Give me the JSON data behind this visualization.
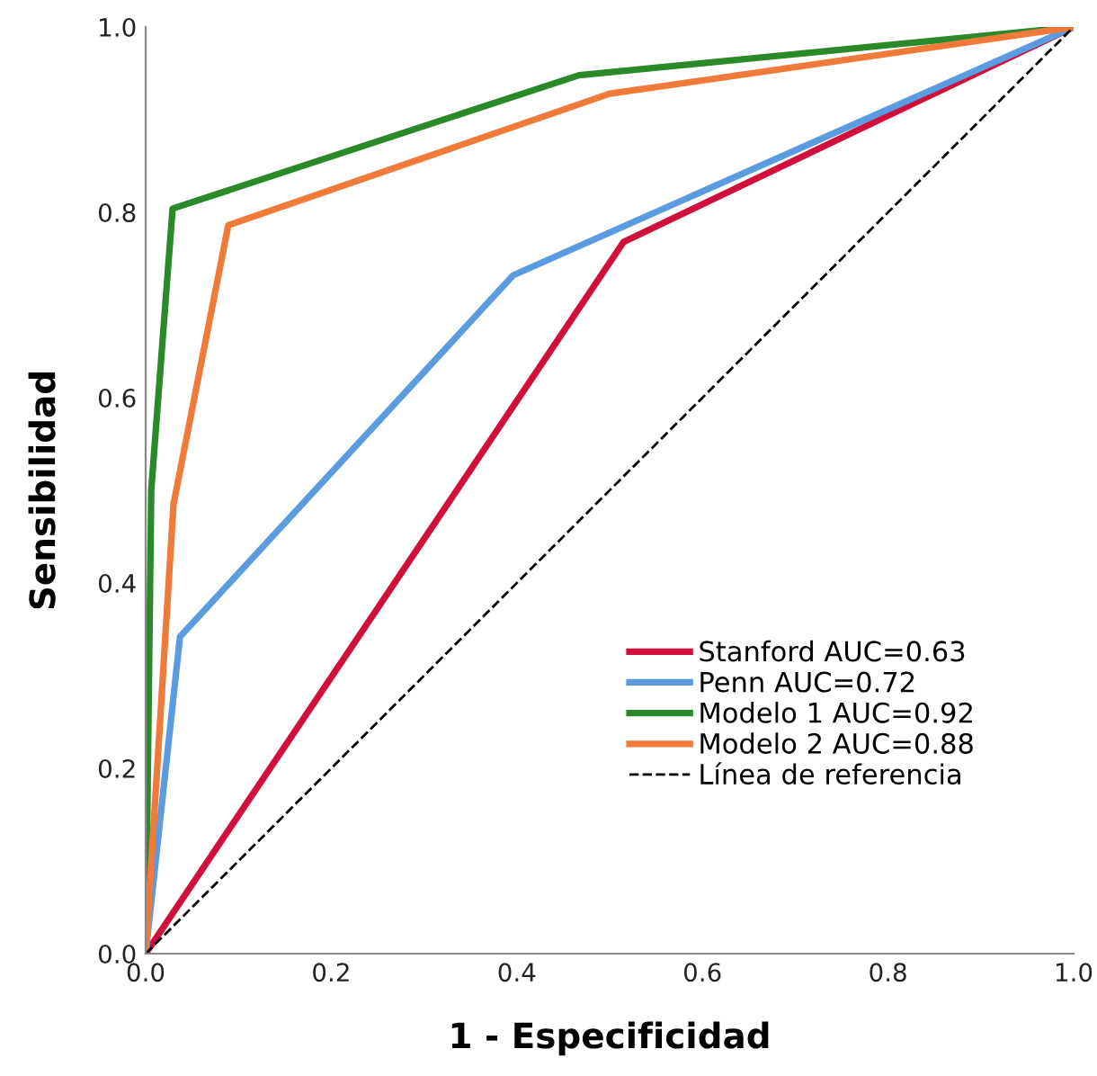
{
  "chart_data": {
    "type": "line",
    "xlabel": "1 - Especificidad",
    "ylabel": "Sensibilidad",
    "xlim": [
      0,
      1
    ],
    "ylim": [
      0,
      1
    ],
    "xticks": [
      {
        "value": 0,
        "label": "0.0"
      },
      0.2,
      0.4,
      0.6,
      0.8,
      {
        "value": 1,
        "label": "1.0"
      }
    ],
    "yticks": [
      {
        "value": 0,
        "label": "0.0"
      },
      0.2,
      0.4,
      0.6,
      0.8,
      {
        "value": 1,
        "label": "1.0"
      }
    ],
    "grid": false,
    "legend": "bottom right",
    "marker": "none",
    "series": [
      {
        "name": "Stanford AUC=0.63",
        "color": "#d0103a",
        "x": [
          0,
          0.515,
          1
        ],
        "values": [
          0,
          0.768,
          1
        ]
      },
      {
        "name": "Penn AUC=0.72",
        "color": "#5b9be0",
        "x": [
          0,
          0.037,
          0.396,
          1
        ],
        "values": [
          0,
          0.342,
          0.732,
          1
        ]
      },
      {
        "name": "Modelo 1 AUC=0.92",
        "color": "#2a8a2a",
        "x": [
          0,
          0.006,
          0.029,
          0.467,
          1
        ],
        "values": [
          0,
          0.5,
          0.804,
          0.948,
          1
        ]
      },
      {
        "name": "Modelo 2 AUC=0.88",
        "color": "#f07a3a",
        "x": [
          0,
          0.03,
          0.089,
          0.5,
          1
        ],
        "values": [
          0,
          0.485,
          0.786,
          0.928,
          1
        ]
      },
      {
        "name": "Línea de referencia",
        "color": "#000000",
        "x": [
          0,
          1
        ],
        "values": [
          0,
          1
        ],
        "line_style": "dashed"
      }
    ]
  }
}
